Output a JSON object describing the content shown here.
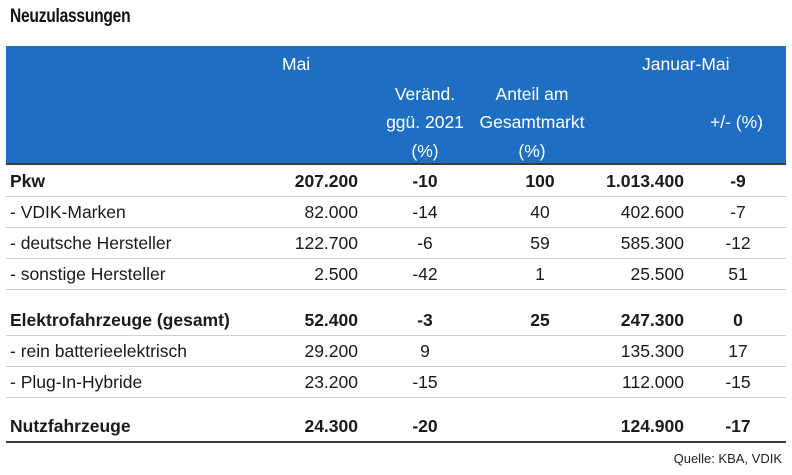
{
  "title": "Neuzulassungen",
  "header": {
    "mai": "Mai",
    "januar_mai": "Januar-Mai",
    "veraend_l1": "Veränd.",
    "veraend_l2": "ggü. 2021",
    "veraend_l3": "(%)",
    "anteil_l1": "Anteil am",
    "anteil_l2": "Gesamtmarkt",
    "anteil_l3": "(%)",
    "pm": "+/- (%)"
  },
  "rows": [
    {
      "label": "Pkw",
      "mai": "207.200",
      "veraend": "-10",
      "anteil": "100",
      "jan_mai": "1.013.400",
      "pm": "-9"
    },
    {
      "label": "- VDIK-Marken",
      "mai": "82.000",
      "veraend": "-14",
      "anteil": "40",
      "jan_mai": "402.600",
      "pm": "-7"
    },
    {
      "label": "- deutsche Hersteller",
      "mai": "122.700",
      "veraend": "-6",
      "anteil": "59",
      "jan_mai": "585.300",
      "pm": "-12"
    },
    {
      "label": "- sonstige Hersteller",
      "mai": "2.500",
      "veraend": "-42",
      "anteil": "1",
      "jan_mai": "25.500",
      "pm": "51"
    },
    {
      "label": "Elektrofahrzeuge (gesamt)",
      "mai": "52.400",
      "veraend": "-3",
      "anteil": "25",
      "jan_mai": "247.300",
      "pm": "0"
    },
    {
      "label": "- rein batterieelektrisch",
      "mai": "29.200",
      "veraend": "9",
      "anteil": "",
      "jan_mai": "135.300",
      "pm": "17"
    },
    {
      "label": "- Plug-In-Hybride",
      "mai": "23.200",
      "veraend": "-15",
      "anteil": "",
      "jan_mai": "112.000",
      "pm": "-15"
    },
    {
      "label": "Nutzfahrzeuge",
      "mai": "24.300",
      "veraend": "-20",
      "anteil": "",
      "jan_mai": "124.900",
      "pm": "-17"
    }
  ],
  "source": "Quelle: KBA, VDIK",
  "colors": {
    "header_bg": "#1e6fc4",
    "header_text": "#ffffff"
  }
}
